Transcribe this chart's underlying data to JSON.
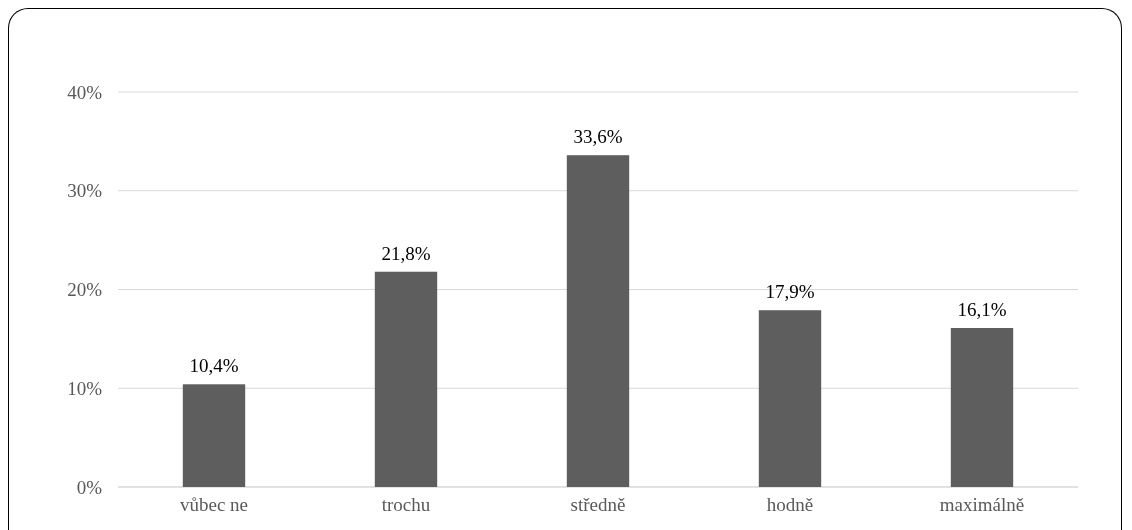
{
  "chart_data": {
    "type": "bar",
    "categories": [
      "vůbec ne",
      "trochu",
      "středně",
      "hodně",
      "maximálně"
    ],
    "values": [
      10.4,
      21.8,
      33.6,
      17.9,
      16.1
    ],
    "value_labels": [
      "10,4%",
      "21,8%",
      "33,6%",
      "17,9%",
      "16,1%"
    ],
    "color": "#5e5e5e",
    "ylim": [
      0,
      40
    ],
    "yticks": [
      {
        "value": 0,
        "label": "0%"
      },
      {
        "value": 10,
        "label": "10%"
      },
      {
        "value": 20,
        "label": "20%"
      },
      {
        "value": 30,
        "label": "30%"
      },
      {
        "value": 40,
        "label": "40%"
      }
    ],
    "grid": "y"
  }
}
